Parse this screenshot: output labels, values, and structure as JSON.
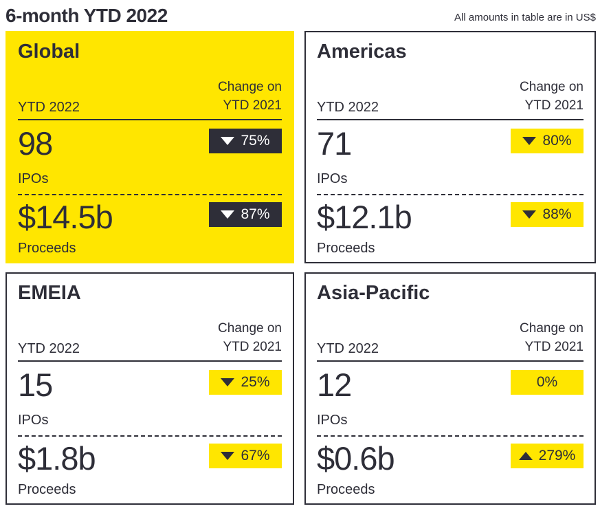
{
  "page": {
    "title": "6-month YTD 2022",
    "note": "All amounts in table are in US$"
  },
  "labels": {
    "period": "YTD 2022",
    "change": "Change on\nYTD 2021",
    "ipos": "IPOs",
    "proceeds": "Proceeds"
  },
  "colors": {
    "accent_yellow": "#FFE600",
    "dark": "#2E2E38",
    "white": "#FFFFFF"
  },
  "cards": [
    {
      "region": "Global",
      "variant": "yellow",
      "ipos": {
        "value": "98",
        "change": {
          "text": "75%",
          "direction": "down"
        }
      },
      "proceeds": {
        "value": "$14.5b",
        "change": {
          "text": "87%",
          "direction": "down"
        }
      }
    },
    {
      "region": "Americas",
      "variant": "white",
      "ipos": {
        "value": "71",
        "change": {
          "text": "80%",
          "direction": "down"
        }
      },
      "proceeds": {
        "value": "$12.1b",
        "change": {
          "text": "88%",
          "direction": "down"
        }
      }
    },
    {
      "region": "EMEIA",
      "variant": "white",
      "ipos": {
        "value": "15",
        "change": {
          "text": "25%",
          "direction": "down"
        }
      },
      "proceeds": {
        "value": "$1.8b",
        "change": {
          "text": "67%",
          "direction": "down"
        }
      }
    },
    {
      "region": "Asia-Pacific",
      "variant": "white",
      "ipos": {
        "value": "12",
        "change": {
          "text": "0%",
          "direction": "none"
        }
      },
      "proceeds": {
        "value": "$0.6b",
        "change": {
          "text": "279%",
          "direction": "up"
        }
      }
    }
  ],
  "chart_data": {
    "type": "table",
    "title": "6-month YTD 2022",
    "note": "All amounts in table are in US$",
    "columns": [
      "Region",
      "IPOs YTD 2022",
      "IPOs change on YTD 2021",
      "Proceeds YTD 2022",
      "Proceeds change on YTD 2021"
    ],
    "rows": [
      [
        "Global",
        98,
        "-75%",
        "$14.5b",
        "-87%"
      ],
      [
        "Americas",
        71,
        "-80%",
        "$12.1b",
        "-88%"
      ],
      [
        "EMEIA",
        15,
        "-25%",
        "$1.8b",
        "-67%"
      ],
      [
        "Asia-Pacific",
        12,
        "0%",
        "$0.6b",
        "+279%"
      ]
    ]
  }
}
